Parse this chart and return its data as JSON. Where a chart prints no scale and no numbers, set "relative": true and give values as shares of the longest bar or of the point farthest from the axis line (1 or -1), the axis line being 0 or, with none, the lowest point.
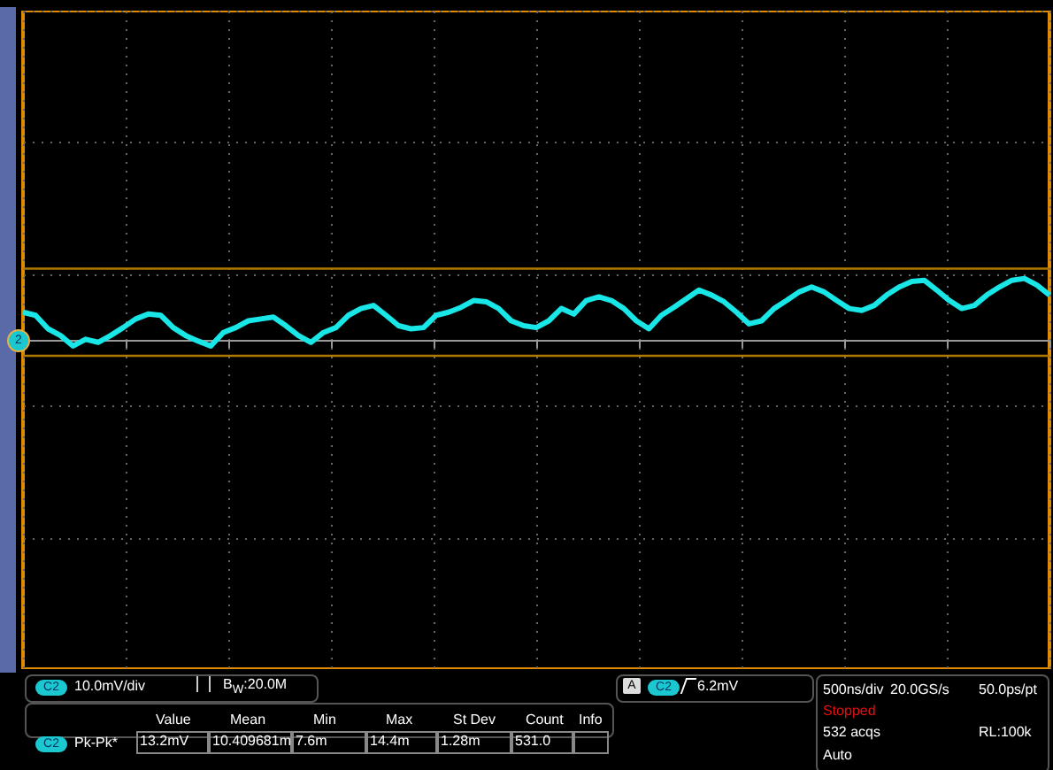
{
  "chart_data": {
    "type": "line",
    "relative": true,
    "grid": true,
    "color": "#19e6e6",
    "categories": [
      null,
      null,
      null,
      null,
      null,
      null,
      null,
      null,
      null,
      null,
      null,
      null,
      null,
      null,
      null,
      null,
      null,
      null,
      null,
      null,
      null,
      null,
      null,
      null,
      null,
      null,
      null,
      null,
      null,
      null,
      null,
      null,
      null,
      null,
      null,
      null,
      null,
      null,
      null,
      null,
      null,
      null,
      null,
      null,
      null,
      null,
      null,
      null,
      null,
      null,
      null,
      null,
      null,
      null,
      null,
      null,
      null,
      null,
      null,
      null,
      null,
      null,
      null,
      null,
      null,
      null,
      null,
      null,
      null,
      null,
      null,
      null,
      null,
      null,
      null,
      null,
      null,
      null,
      null,
      null,
      null,
      null,
      null
    ],
    "values": [
      0.45,
      0.4,
      0.18,
      0.07,
      -0.1,
      0.01,
      -0.04,
      0.07,
      0.2,
      0.34,
      0.42,
      0.4,
      0.2,
      0.07,
      -0.02,
      -0.1,
      0.12,
      0.2,
      0.31,
      0.34,
      0.37,
      0.23,
      0.07,
      -0.04,
      0.12,
      0.2,
      0.4,
      0.51,
      0.56,
      0.4,
      0.23,
      0.18,
      0.2,
      0.4,
      0.45,
      0.53,
      0.64,
      0.62,
      0.51,
      0.31,
      0.23,
      0.2,
      0.31,
      0.51,
      0.42,
      0.64,
      0.7,
      0.64,
      0.51,
      0.31,
      0.18,
      0.4,
      0.53,
      0.67,
      0.81,
      0.73,
      0.62,
      0.45,
      0.26,
      0.31,
      0.51,
      0.64,
      0.78,
      0.86,
      0.78,
      0.64,
      0.51,
      0.48,
      0.56,
      0.73,
      0.86,
      0.95,
      0.97,
      0.81,
      0.64,
      0.51,
      0.56,
      0.73,
      0.86,
      0.97,
      1,
      0.89,
      0.73
    ],
    "ref_lines": [
      {
        "axis": "y",
        "value": 1.16,
        "color": "#b07800"
      },
      {
        "axis": "y",
        "value": -0.26,
        "color": "#b07800"
      }
    ],
    "annotations": [
      "C2",
      "10.0mV/div",
      "B$_{W}$:20.0M",
      "A",
      "C2",
      "6.2mV",
      "500ns/div",
      "20.0GS/s",
      "50.0ps/pt",
      "Stopped",
      "532 acqs",
      "RL:100k",
      "Auto",
      "C2",
      "Pk-Pk*",
      "Value",
      "Mean",
      "Min",
      "Max",
      "St Dev",
      "Count",
      "Info",
      "13.2mV",
      "10.409681m",
      "7.6m",
      "14.4m",
      "1.28m",
      "531.0",
      "2"
    ]
  }
}
